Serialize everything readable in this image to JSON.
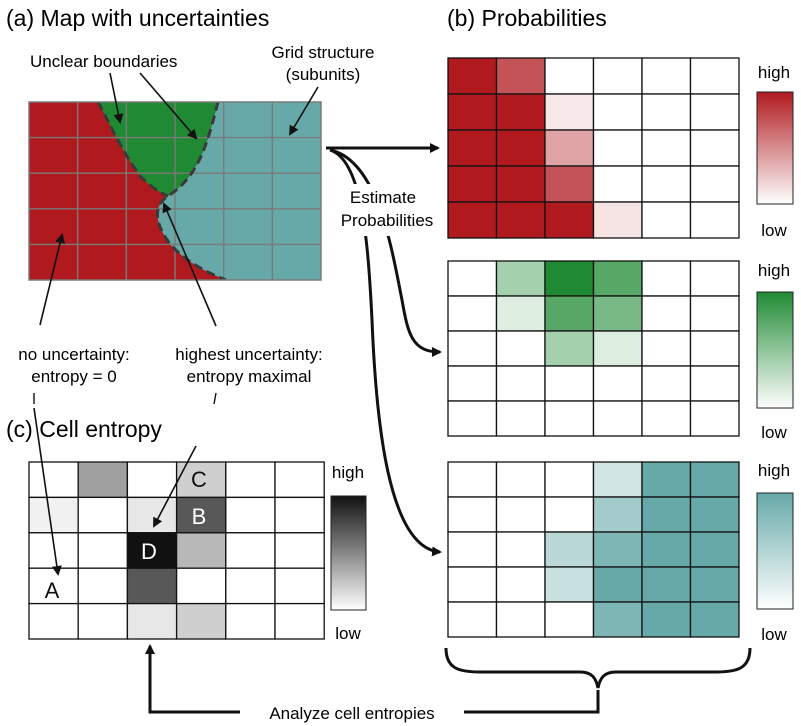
{
  "panel_a": {
    "title": "(a) Map with uncertainties",
    "label_unclear": "Unclear boundaries",
    "label_grid_1": "Grid structure",
    "label_grid_2": "(subunits)",
    "label_no_unc_1": "no uncertainty:",
    "label_no_unc_2": "entropy = 0",
    "label_high_unc_1": "highest uncertainty:",
    "label_high_unc_2": "entropy maximal",
    "colors": {
      "red": "#b01a1f",
      "green": "#1f8a33",
      "teal": "#67a9a9",
      "grid": "#7a7a7a"
    }
  },
  "arrows": {
    "estimate_1": "Estimate",
    "estimate_2": "Probabilities",
    "analyze": "Analyze cell entropies"
  },
  "panel_b": {
    "title": "(b) Probabilities",
    "red_grid": [
      [
        1.0,
        0.75,
        0,
        0,
        0,
        0
      ],
      [
        1.0,
        1.0,
        0.1,
        0,
        0,
        0
      ],
      [
        1.0,
        1.0,
        0.4,
        0,
        0,
        0
      ],
      [
        1.0,
        1.0,
        0.75,
        0,
        0,
        0
      ],
      [
        1.0,
        1.0,
        1.0,
        0.12,
        0,
        0
      ]
    ],
    "green_grid": [
      [
        0,
        0.4,
        1.0,
        0.75,
        0,
        0
      ],
      [
        0,
        0.15,
        0.75,
        0.6,
        0,
        0
      ],
      [
        0,
        0,
        0.4,
        0.15,
        0,
        0
      ],
      [
        0,
        0,
        0,
        0,
        0,
        0
      ],
      [
        0,
        0,
        0,
        0,
        0,
        0
      ]
    ],
    "teal_grid": [
      [
        0,
        0,
        0,
        0.3,
        1.0,
        1.0
      ],
      [
        0,
        0,
        0,
        0.6,
        1.0,
        1.0
      ],
      [
        0,
        0,
        0.45,
        0.85,
        1.0,
        1.0
      ],
      [
        0,
        0,
        0.35,
        1.0,
        1.0,
        1.0
      ],
      [
        0,
        0,
        0,
        0.85,
        1.0,
        1.0
      ]
    ],
    "scale_red": {
      "high": "high",
      "low": "low",
      "color": "#b01a1f"
    },
    "scale_green": {
      "high": "high",
      "low": "low",
      "color": "#1f8a33"
    },
    "scale_teal": {
      "high": "high",
      "low": "low",
      "color": "#67a9a9"
    }
  },
  "panel_c": {
    "title": "(c) Cell entropy",
    "entropy_grid": [
      [
        0,
        0.4,
        0,
        0.2,
        0,
        0
      ],
      [
        0.06,
        0,
        0.1,
        0.7,
        0,
        0
      ],
      [
        0,
        0,
        1.0,
        0.3,
        0,
        0
      ],
      [
        0,
        0,
        0.7,
        0,
        0,
        0
      ],
      [
        0,
        0,
        0.1,
        0.2,
        0,
        0
      ]
    ],
    "letter_a": "A",
    "letter_b": "B",
    "letter_c": "C",
    "letter_d": "D",
    "scale": {
      "high": "high",
      "low": "low"
    }
  }
}
